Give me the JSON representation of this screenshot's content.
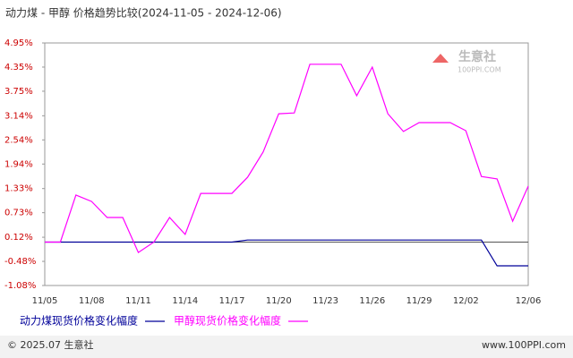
{
  "chart_data": {
    "type": "line",
    "title": "动力煤 - 甲醇 价格趋势比较(2024-11-05 - 2024-12-06)",
    "categories": [
      "11/05",
      null,
      null,
      "11/08",
      null,
      null,
      "11/11",
      null,
      null,
      "11/14",
      null,
      null,
      "11/17",
      null,
      null,
      "11/20",
      null,
      null,
      "11/23",
      null,
      null,
      "11/26",
      null,
      null,
      "11/29",
      null,
      null,
      "12/02",
      null,
      null,
      null,
      "12/06"
    ],
    "series": [
      {
        "name": "动力煤现货价格变化幅度",
        "color": "#000099",
        "values": [
          0,
          0,
          0,
          0,
          0,
          0,
          0,
          0,
          0,
          0,
          0,
          0,
          0,
          0.05,
          0.05,
          0.05,
          0.05,
          0.05,
          0.05,
          0.05,
          0.05,
          0.05,
          0.05,
          0.05,
          0.05,
          0.05,
          0.05,
          0.05,
          0.05,
          -0.59,
          -0.59,
          -0.59
        ]
      },
      {
        "name": "甲醇现货价格变化幅度",
        "color": "#ff00ff",
        "values": [
          0,
          0,
          1.17,
          1.01,
          0.61,
          0.61,
          -0.26,
          0,
          0.61,
          0.19,
          1.21,
          1.21,
          1.21,
          1.61,
          2.24,
          3.19,
          3.21,
          4.42,
          4.42,
          4.42,
          3.64,
          4.35,
          3.19,
          2.75,
          2.97,
          2.97,
          2.97,
          2.77,
          1.63,
          1.57,
          0.52,
          1.39
        ]
      }
    ],
    "ylim": [
      -1.08,
      4.95
    ],
    "yticks": [
      {
        "value": 4.95,
        "label": "4.95%"
      },
      {
        "value": 4.35,
        "label": "4.35%"
      },
      {
        "value": 3.75,
        "label": "3.75%"
      },
      {
        "value": 3.14,
        "label": "3.14%"
      },
      {
        "value": 2.54,
        "label": "2.54%"
      },
      {
        "value": 1.94,
        "label": "1.94%"
      },
      {
        "value": 1.33,
        "label": "1.33%"
      },
      {
        "value": 0.73,
        "label": "0.73%"
      },
      {
        "value": 0.12,
        "label": "0.12%"
      },
      {
        "value": -0.48,
        "label": "-0.48%"
      },
      {
        "value": -1.08,
        "label": "-1.08%"
      }
    ],
    "watermark": [
      "生意社",
      "100PPI.COM"
    ],
    "footer": {
      "copyright": "© 2025.07 生意社",
      "site": "www.100PPI.com"
    }
  }
}
